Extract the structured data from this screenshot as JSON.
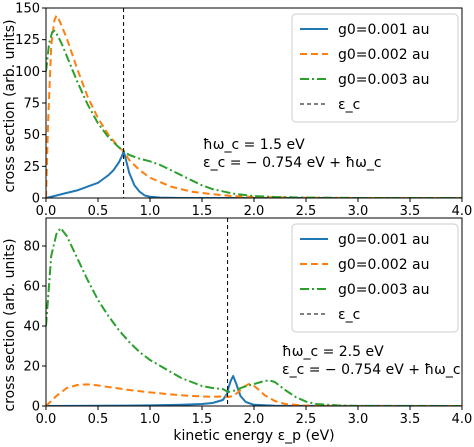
{
  "chart_data": [
    {
      "type": "line",
      "xlabel": "",
      "ylabel": "cross section (arb. units)",
      "xlim": [
        0.0,
        4.0
      ],
      "ylim": [
        0,
        150
      ],
      "x_ticks": [
        "0.0",
        "0.5",
        "1.0",
        "1.5",
        "2.0",
        "2.5",
        "3.0",
        "3.5",
        "4.0"
      ],
      "y_ticks": [
        "0",
        "25",
        "50",
        "75",
        "100",
        "125",
        "150"
      ],
      "vline": {
        "x": 0.746,
        "name": "ε_c"
      },
      "legend": {
        "placement": "top-right",
        "entries": [
          "g0=0.001 au",
          "g0=0.002 au",
          "g0=0.003 au",
          "ε_c"
        ]
      },
      "annotation": [
        "ħω_c = 1.5 eV",
        "ε_c = − 0.754 eV + ħω_c"
      ],
      "series": [
        {
          "name": "g0=0.001 au",
          "color": "#1f77b4",
          "style": "solid",
          "points": [
            [
              0.0,
              0
            ],
            [
              0.1,
              2
            ],
            [
              0.2,
              4
            ],
            [
              0.3,
              6
            ],
            [
              0.4,
              9
            ],
            [
              0.5,
              12
            ],
            [
              0.55,
              15
            ],
            [
              0.6,
              18
            ],
            [
              0.65,
              22
            ],
            [
              0.7,
              28
            ],
            [
              0.73,
              33
            ],
            [
              0.746,
              37
            ],
            [
              0.76,
              33
            ],
            [
              0.8,
              20
            ],
            [
              0.85,
              10
            ],
            [
              0.9,
              5
            ],
            [
              0.95,
              2
            ],
            [
              1.0,
              1
            ],
            [
              1.1,
              0.3
            ],
            [
              1.3,
              0
            ],
            [
              4.0,
              0
            ]
          ]
        },
        {
          "name": "g0=0.002 au",
          "color": "#ff7f0e",
          "style": "dashed",
          "points": [
            [
              0.0,
              0
            ],
            [
              0.02,
              60
            ],
            [
              0.05,
              120
            ],
            [
              0.08,
              140
            ],
            [
              0.1,
              144
            ],
            [
              0.13,
              140
            ],
            [
              0.2,
              126
            ],
            [
              0.3,
              102
            ],
            [
              0.4,
              80
            ],
            [
              0.5,
              63
            ],
            [
              0.6,
              50
            ],
            [
              0.7,
              40
            ],
            [
              0.746,
              37
            ],
            [
              0.8,
              30
            ],
            [
              0.9,
              22
            ],
            [
              1.0,
              16
            ],
            [
              1.2,
              9
            ],
            [
              1.4,
              5
            ],
            [
              1.6,
              3
            ],
            [
              1.8,
              1.5
            ],
            [
              2.0,
              0.8
            ],
            [
              2.5,
              0.2
            ],
            [
              3.0,
              0
            ],
            [
              4.0,
              0
            ]
          ]
        },
        {
          "name": "g0=0.003 au",
          "color": "#2ca02c",
          "style": "dashdot",
          "points": [
            [
              0.0,
              100
            ],
            [
              0.03,
              122
            ],
            [
              0.06,
              131
            ],
            [
              0.08,
              132
            ],
            [
              0.1,
              130
            ],
            [
              0.15,
              122
            ],
            [
              0.2,
              112
            ],
            [
              0.3,
              92
            ],
            [
              0.4,
              74
            ],
            [
              0.5,
              59
            ],
            [
              0.6,
              48
            ],
            [
              0.7,
              40
            ],
            [
              0.746,
              37
            ],
            [
              0.8,
              34
            ],
            [
              0.9,
              31
            ],
            [
              1.0,
              29
            ],
            [
              1.1,
              26
            ],
            [
              1.2,
              22
            ],
            [
              1.3,
              18
            ],
            [
              1.4,
              14
            ],
            [
              1.5,
              10
            ],
            [
              1.6,
              7
            ],
            [
              1.8,
              3.5
            ],
            [
              2.0,
              1.5
            ],
            [
              2.2,
              0.8
            ],
            [
              2.5,
              0.3
            ],
            [
              3.0,
              0
            ],
            [
              4.0,
              0
            ]
          ]
        }
      ]
    },
    {
      "type": "line",
      "xlabel": "kinetic energy ε_p (eV)",
      "ylabel": "cross section (arb. units)",
      "xlim": [
        0.0,
        4.0
      ],
      "ylim": [
        0,
        94
      ],
      "x_ticks": [
        "0.0",
        "0.5",
        "1.0",
        "1.5",
        "2.0",
        "2.5",
        "3.0",
        "3.5",
        "4.0"
      ],
      "y_ticks": [
        "0",
        "20",
        "40",
        "60",
        "80"
      ],
      "vline": {
        "x": 1.746,
        "name": "ε_c"
      },
      "legend": {
        "placement": "top-right",
        "entries": [
          "g0=0.001 au",
          "g0=0.002 au",
          "g0=0.003 au",
          "ε_c"
        ]
      },
      "annotation": [
        "ħω_c = 2.5 eV",
        "ε_c = − 0.754 eV + ħω_c"
      ],
      "series": [
        {
          "name": "g0=0.001 au",
          "color": "#1f77b4",
          "style": "solid",
          "points": [
            [
              0.0,
              0
            ],
            [
              0.5,
              0.1
            ],
            [
              1.0,
              0.3
            ],
            [
              1.3,
              0.6
            ],
            [
              1.5,
              1
            ],
            [
              1.6,
              1.5
            ],
            [
              1.7,
              3
            ],
            [
              1.74,
              6
            ],
            [
              1.76,
              10
            ],
            [
              1.78,
              13
            ],
            [
              1.8,
              15
            ],
            [
              1.83,
              11
            ],
            [
              1.87,
              5
            ],
            [
              1.92,
              2
            ],
            [
              2.0,
              0.6
            ],
            [
              2.2,
              0.1
            ],
            [
              4.0,
              0
            ]
          ]
        },
        {
          "name": "g0=0.002 au",
          "color": "#ff7f0e",
          "style": "dashed",
          "points": [
            [
              0.0,
              0
            ],
            [
              0.1,
              5
            ],
            [
              0.2,
              9
            ],
            [
              0.3,
              10.5
            ],
            [
              0.4,
              10.8
            ],
            [
              0.5,
              10.3
            ],
            [
              0.6,
              9.5
            ],
            [
              0.8,
              8
            ],
            [
              1.0,
              6.8
            ],
            [
              1.2,
              5.8
            ],
            [
              1.4,
              5
            ],
            [
              1.6,
              4.6
            ],
            [
              1.7,
              4.8
            ],
            [
              1.75,
              4.5
            ],
            [
              1.8,
              5
            ],
            [
              1.85,
              7
            ],
            [
              1.9,
              9.5
            ],
            [
              1.95,
              11
            ],
            [
              2.0,
              10
            ],
            [
              2.05,
              8
            ],
            [
              2.1,
              5.5
            ],
            [
              2.2,
              2.5
            ],
            [
              2.3,
              1
            ],
            [
              2.5,
              0.2
            ],
            [
              2.8,
              0
            ],
            [
              4.0,
              0
            ]
          ]
        },
        {
          "name": "g0=0.003 au",
          "color": "#2ca02c",
          "style": "dashdot",
          "points": [
            [
              0.0,
              40
            ],
            [
              0.05,
              75
            ],
            [
              0.1,
              86
            ],
            [
              0.14,
              89
            ],
            [
              0.2,
              85
            ],
            [
              0.3,
              74
            ],
            [
              0.4,
              63
            ],
            [
              0.5,
              53
            ],
            [
              0.6,
              45
            ],
            [
              0.7,
              38
            ],
            [
              0.8,
              32
            ],
            [
              0.9,
              27
            ],
            [
              1.0,
              23
            ],
            [
              1.1,
              20
            ],
            [
              1.2,
              17
            ],
            [
              1.3,
              14
            ],
            [
              1.4,
              12
            ],
            [
              1.5,
              10
            ],
            [
              1.6,
              9
            ],
            [
              1.7,
              8.5
            ],
            [
              1.75,
              7
            ],
            [
              1.8,
              7.5
            ],
            [
              1.9,
              9.5
            ],
            [
              2.0,
              11
            ],
            [
              2.1,
              12.5
            ],
            [
              2.15,
              12.8
            ],
            [
              2.2,
              12
            ],
            [
              2.3,
              8
            ],
            [
              2.4,
              4.5
            ],
            [
              2.5,
              2.2
            ],
            [
              2.6,
              1
            ],
            [
              2.8,
              0.3
            ],
            [
              3.0,
              0
            ],
            [
              4.0,
              0
            ]
          ]
        }
      ]
    }
  ]
}
